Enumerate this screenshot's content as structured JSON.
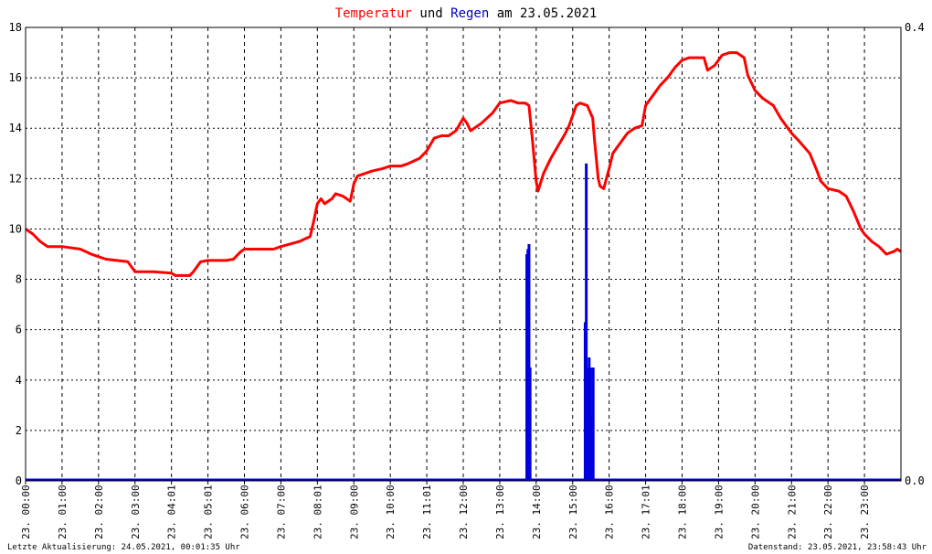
{
  "chart_data": {
    "type": "line",
    "title": {
      "part1": "Temperatur",
      "part2": " und ",
      "part3": "Regen",
      "part4": " am 23.05.2021"
    },
    "colors": {
      "temperature": "#ff0000",
      "rain": "#0000dd",
      "title_text": "#000000",
      "grid": "#000000"
    },
    "y_left": {
      "min": 0,
      "max": 18,
      "ticks": [
        "0",
        "2",
        "4",
        "6",
        "8",
        "10",
        "12",
        "14",
        "16",
        "18"
      ]
    },
    "y_right": {
      "min": 0,
      "max": 0.4,
      "ticks": [
        "0.0",
        "0.4"
      ]
    },
    "x": {
      "min_hour": 0,
      "max_hour": 24,
      "ticks": [
        {
          "hour": 0,
          "label": "23. 00:00"
        },
        {
          "hour": 1,
          "label": "23. 01:00"
        },
        {
          "hour": 2,
          "label": "23. 02:00"
        },
        {
          "hour": 3,
          "label": "23. 03:00"
        },
        {
          "hour": 4,
          "label": "23. 04:01"
        },
        {
          "hour": 5,
          "label": "23. 05:01"
        },
        {
          "hour": 6,
          "label": "23. 06:00"
        },
        {
          "hour": 7,
          "label": "23. 07:00"
        },
        {
          "hour": 8,
          "label": "23. 08:01"
        },
        {
          "hour": 9,
          "label": "23. 09:00"
        },
        {
          "hour": 10,
          "label": "23. 10:00"
        },
        {
          "hour": 11,
          "label": "23. 11:01"
        },
        {
          "hour": 12,
          "label": "23. 12:00"
        },
        {
          "hour": 13,
          "label": "23. 13:00"
        },
        {
          "hour": 14,
          "label": "23. 14:00"
        },
        {
          "hour": 15,
          "label": "23. 15:00"
        },
        {
          "hour": 16,
          "label": "23. 16:00"
        },
        {
          "hour": 17,
          "label": "23. 17:01"
        },
        {
          "hour": 18,
          "label": "23. 18:00"
        },
        {
          "hour": 19,
          "label": "23. 19:00"
        },
        {
          "hour": 20,
          "label": "23. 20:00"
        },
        {
          "hour": 21,
          "label": "23. 21:00"
        },
        {
          "hour": 22,
          "label": "23. 22:00"
        },
        {
          "hour": 23,
          "label": "23. 23:00"
        }
      ]
    },
    "series": [
      {
        "axis": "left",
        "points": [
          [
            0.0,
            10.0
          ],
          [
            0.2,
            9.8
          ],
          [
            0.4,
            9.5
          ],
          [
            0.6,
            9.3
          ],
          [
            1.0,
            9.3
          ],
          [
            1.5,
            9.2
          ],
          [
            1.8,
            9.0
          ],
          [
            2.0,
            8.9
          ],
          [
            2.2,
            8.8
          ],
          [
            2.5,
            8.75
          ],
          [
            2.8,
            8.7
          ],
          [
            2.9,
            8.5
          ],
          [
            3.0,
            8.3
          ],
          [
            3.5,
            8.3
          ],
          [
            4.0,
            8.25
          ],
          [
            4.1,
            8.15
          ],
          [
            4.5,
            8.15
          ],
          [
            4.6,
            8.3
          ],
          [
            4.8,
            8.7
          ],
          [
            5.0,
            8.75
          ],
          [
            5.5,
            8.75
          ],
          [
            5.7,
            8.8
          ],
          [
            5.9,
            9.1
          ],
          [
            6.0,
            9.2
          ],
          [
            6.5,
            9.2
          ],
          [
            6.8,
            9.2
          ],
          [
            7.0,
            9.3
          ],
          [
            7.5,
            9.5
          ],
          [
            7.8,
            9.7
          ],
          [
            7.9,
            10.3
          ],
          [
            8.0,
            11.0
          ],
          [
            8.1,
            11.2
          ],
          [
            8.2,
            11.0
          ],
          [
            8.4,
            11.2
          ],
          [
            8.5,
            11.4
          ],
          [
            8.7,
            11.3
          ],
          [
            8.9,
            11.1
          ],
          [
            9.0,
            11.8
          ],
          [
            9.1,
            12.1
          ],
          [
            9.3,
            12.2
          ],
          [
            9.5,
            12.3
          ],
          [
            9.8,
            12.4
          ],
          [
            10.0,
            12.5
          ],
          [
            10.3,
            12.5
          ],
          [
            10.5,
            12.6
          ],
          [
            10.8,
            12.8
          ],
          [
            11.0,
            13.1
          ],
          [
            11.2,
            13.6
          ],
          [
            11.4,
            13.7
          ],
          [
            11.6,
            13.7
          ],
          [
            11.8,
            13.9
          ],
          [
            12.0,
            14.4
          ],
          [
            12.1,
            14.2
          ],
          [
            12.2,
            13.9
          ],
          [
            12.5,
            14.2
          ],
          [
            12.8,
            14.6
          ],
          [
            13.0,
            15.0
          ],
          [
            13.3,
            15.1
          ],
          [
            13.5,
            15.0
          ],
          [
            13.7,
            15.0
          ],
          [
            13.8,
            14.9
          ],
          [
            13.9,
            13.5
          ],
          [
            14.0,
            11.9
          ],
          [
            14.05,
            11.5
          ],
          [
            14.2,
            12.2
          ],
          [
            14.4,
            12.8
          ],
          [
            14.6,
            13.3
          ],
          [
            14.8,
            13.8
          ],
          [
            14.9,
            14.1
          ],
          [
            15.0,
            14.5
          ],
          [
            15.1,
            14.9
          ],
          [
            15.2,
            15.0
          ],
          [
            15.4,
            14.9
          ],
          [
            15.55,
            14.4
          ],
          [
            15.6,
            13.5
          ],
          [
            15.7,
            12.0
          ],
          [
            15.75,
            11.7
          ],
          [
            15.85,
            11.6
          ],
          [
            16.0,
            12.4
          ],
          [
            16.1,
            13.0
          ],
          [
            16.3,
            13.4
          ],
          [
            16.5,
            13.8
          ],
          [
            16.7,
            14.0
          ],
          [
            16.9,
            14.1
          ],
          [
            17.0,
            14.9
          ],
          [
            17.2,
            15.3
          ],
          [
            17.4,
            15.7
          ],
          [
            17.6,
            16.0
          ],
          [
            17.8,
            16.4
          ],
          [
            18.0,
            16.7
          ],
          [
            18.2,
            16.8
          ],
          [
            18.4,
            16.8
          ],
          [
            18.6,
            16.8
          ],
          [
            18.7,
            16.3
          ],
          [
            18.9,
            16.5
          ],
          [
            19.1,
            16.9
          ],
          [
            19.3,
            17.0
          ],
          [
            19.5,
            17.0
          ],
          [
            19.7,
            16.8
          ],
          [
            19.8,
            16.1
          ],
          [
            20.0,
            15.5
          ],
          [
            20.2,
            15.2
          ],
          [
            20.5,
            14.9
          ],
          [
            20.7,
            14.4
          ],
          [
            21.0,
            13.8
          ],
          [
            21.2,
            13.5
          ],
          [
            21.5,
            13.0
          ],
          [
            21.7,
            12.3
          ],
          [
            21.8,
            11.9
          ],
          [
            22.0,
            11.6
          ],
          [
            22.3,
            11.5
          ],
          [
            22.5,
            11.3
          ],
          [
            22.7,
            10.7
          ],
          [
            22.9,
            10.0
          ],
          [
            23.0,
            9.8
          ],
          [
            23.2,
            9.5
          ],
          [
            23.4,
            9.3
          ],
          [
            23.6,
            9.0
          ],
          [
            23.8,
            9.1
          ],
          [
            23.9,
            9.2
          ],
          [
            24.0,
            9.1
          ]
        ]
      },
      {
        "axis": "left",
        "kind": "bars",
        "bars": [
          [
            13.73,
            9.0
          ],
          [
            13.76,
            9.2
          ],
          [
            13.79,
            9.4
          ],
          [
            13.82,
            4.5
          ],
          [
            15.33,
            6.3
          ],
          [
            15.36,
            12.6
          ],
          [
            15.4,
            4.5
          ],
          [
            15.44,
            4.9
          ],
          [
            15.48,
            4.5
          ],
          [
            15.52,
            2.5
          ],
          [
            15.55,
            4.5
          ]
        ]
      }
    ]
  },
  "footer": {
    "left": "Letzte Aktualisierung: 24.05.2021, 00:01:35 Uhr",
    "right": "Datenstand: 23.05.2021, 23:58:43 Uhr"
  }
}
